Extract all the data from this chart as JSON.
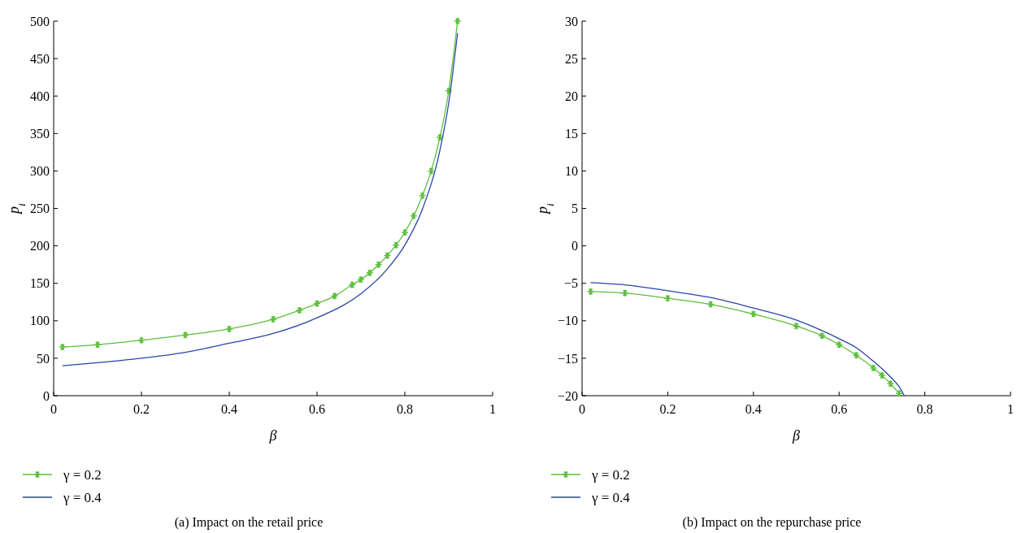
{
  "chart_data": [
    {
      "type": "line",
      "xlabel": "β",
      "ylabel": "p$_{i}$",
      "xlim": [
        0,
        1
      ],
      "xticks": [
        0,
        0.2,
        0.4,
        0.6,
        0.8,
        1
      ],
      "ylim": [
        0,
        500
      ],
      "yticks": [
        0,
        50,
        100,
        150,
        200,
        250,
        300,
        350,
        400,
        450,
        500
      ],
      "grid": false,
      "legend": "bottom left",
      "line_style": "solid",
      "annotations": [
        "(a)  Impact on the retail price"
      ],
      "series": [
        {
          "name": "γ = 0.2",
          "color": "#5cbf3c",
          "marker": "cross",
          "x": [
            0.02,
            0.1,
            0.2,
            0.3,
            0.4,
            0.5,
            0.56,
            0.6,
            0.64,
            0.68,
            0.7,
            0.72,
            0.74,
            0.76,
            0.78,
            0.8,
            0.82,
            0.84,
            0.86,
            0.88,
            0.9,
            0.92
          ],
          "values": [
            65,
            68,
            74,
            81,
            89,
            102,
            114,
            123,
            133,
            148,
            155,
            164,
            175,
            187,
            201,
            218,
            240,
            267,
            300,
            345,
            407,
            500
          ]
        },
        {
          "name": "γ = 0.4",
          "color": "#2a45a8",
          "marker": "none",
          "x": [
            0.02,
            0.1,
            0.2,
            0.3,
            0.4,
            0.5,
            0.6,
            0.7,
            0.76,
            0.8,
            0.84,
            0.88,
            0.9,
            0.92
          ],
          "values": [
            40,
            44,
            50,
            58,
            70,
            83,
            104,
            136,
            169,
            201,
            249,
            328,
            391,
            484
          ]
        }
      ]
    },
    {
      "type": "line",
      "xlabel": "β",
      "ylabel": "p$_{i}$",
      "xlim": [
        0,
        1
      ],
      "xticks": [
        0,
        0.2,
        0.4,
        0.6,
        0.8,
        1
      ],
      "ylim": [
        -20,
        30
      ],
      "yticks": [
        -20,
        -15,
        -10,
        -5,
        0,
        5,
        10,
        15,
        20,
        25,
        30
      ],
      "grid": false,
      "legend": "bottom left",
      "line_style": "solid",
      "annotations": [
        "(b)  Impact on the repurchase price"
      ],
      "series": [
        {
          "name": "γ = 0.2",
          "color": "#5cbf3c",
          "marker": "cross",
          "x": [
            0.02,
            0.1,
            0.2,
            0.3,
            0.4,
            0.5,
            0.56,
            0.6,
            0.64,
            0.68,
            0.7,
            0.72,
            0.74
          ],
          "values": [
            -6.1,
            -6.3,
            -7.0,
            -7.8,
            -9.1,
            -10.7,
            -12.0,
            -13.2,
            -14.6,
            -16.3,
            -17.3,
            -18.4,
            -19.7
          ]
        },
        {
          "name": "γ = 0.4",
          "color": "#2a45a8",
          "marker": "none",
          "x": [
            0.02,
            0.1,
            0.2,
            0.3,
            0.4,
            0.5,
            0.56,
            0.6,
            0.64,
            0.68,
            0.7,
            0.72,
            0.74,
            0.752
          ],
          "values": [
            -4.9,
            -5.2,
            -6.0,
            -6.9,
            -8.3,
            -9.9,
            -11.3,
            -12.4,
            -13.6,
            -15.4,
            -16.4,
            -17.5,
            -18.8,
            -20
          ]
        }
      ]
    }
  ]
}
